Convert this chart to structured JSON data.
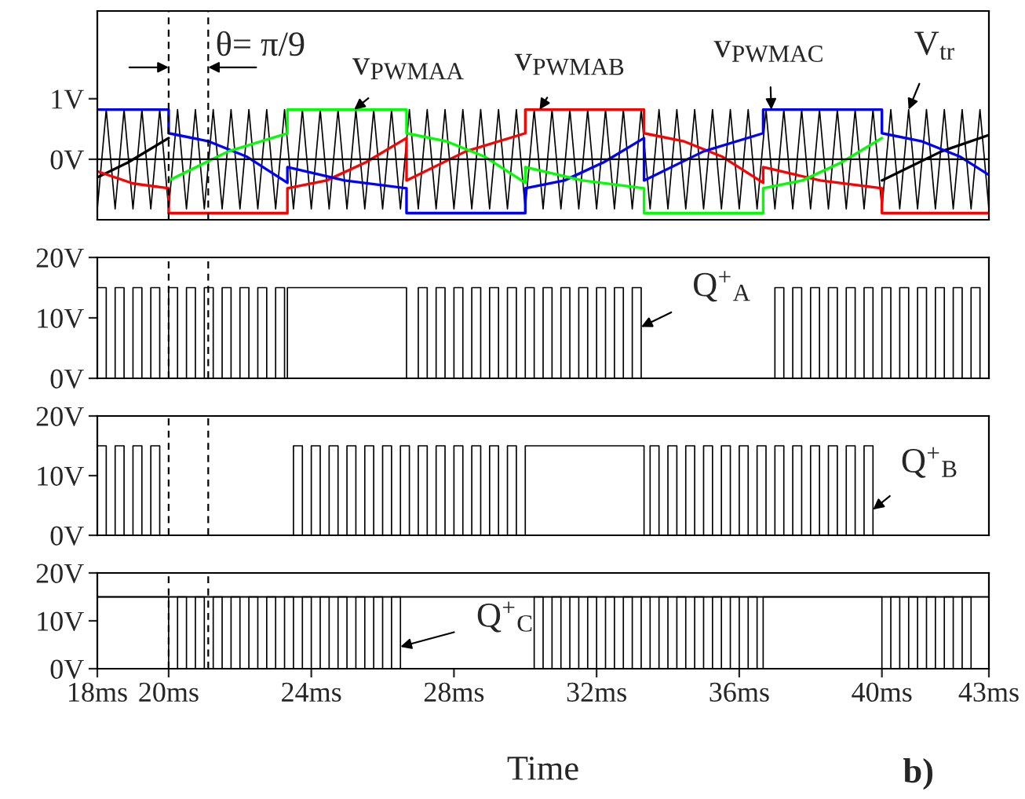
{
  "chart_data": [
    {
      "type": "line",
      "xlim": [
        18,
        43
      ],
      "ylim": [
        -1,
        2.45
      ],
      "yticks": [
        {
          "value": 0,
          "label": "0V"
        },
        {
          "value": 1,
          "label": "1V"
        }
      ],
      "tick_labels": "y",
      "series": [
        {
          "x": [
            18,
            18.25,
            18.5,
            18.75,
            19,
            19.25,
            19.5,
            19.75,
            20,
            20.25,
            20.5,
            20.75,
            21,
            21.25,
            21.5,
            21.75,
            22,
            22.25,
            22.5,
            22.75,
            23,
            23.25,
            23.5,
            23.75,
            24,
            24.25,
            24.5,
            24.75,
            25,
            25.25,
            25.5,
            25.75,
            26,
            26.25,
            26.5,
            26.75,
            27,
            27.25,
            27.5,
            27.75,
            28,
            28.25,
            28.5,
            28.75,
            29,
            29.25,
            29.5,
            29.75,
            30,
            30.25,
            30.5,
            30.75,
            31,
            31.25,
            31.5,
            31.75,
            32,
            32.25,
            32.5,
            32.75,
            33,
            33.25,
            33.5,
            33.75,
            34,
            34.25,
            34.5,
            34.75,
            35,
            35.25,
            35.5,
            35.75,
            36,
            36.25,
            36.5,
            36.75,
            37,
            37.25,
            37.5,
            37.75,
            38,
            38.25,
            38.5,
            38.75,
            39,
            39.25,
            39.5,
            39.75,
            40,
            40.25,
            40.5,
            40.75,
            41,
            41.25,
            41.5,
            41.75,
            42,
            42.25,
            42.5,
            42.75,
            43
          ],
          "color": "#000000",
          "values": [
            -0.82,
            0.82,
            -0.82,
            0.82,
            -0.82,
            0.82,
            -0.82,
            0.82,
            -0.82,
            0.82,
            -0.82,
            0.82,
            -0.82,
            0.82,
            -0.82,
            0.82,
            -0.82,
            0.82,
            -0.82,
            0.82,
            -0.82,
            0.82,
            -0.82,
            0.82,
            -0.82,
            0.82,
            -0.82,
            0.82,
            -0.82,
            0.82,
            -0.82,
            0.82,
            -0.82,
            0.82,
            -0.82,
            0.82,
            -0.82,
            0.82,
            -0.82,
            0.82,
            -0.82,
            0.82,
            -0.82,
            0.82,
            -0.82,
            0.82,
            -0.82,
            0.82,
            -0.82,
            0.82,
            -0.82,
            0.82,
            -0.82,
            0.82,
            -0.82,
            0.82,
            -0.82,
            0.82,
            -0.82,
            0.82,
            -0.82,
            0.82,
            -0.82,
            0.82,
            -0.82,
            0.82,
            -0.82,
            0.82,
            -0.82,
            0.82,
            -0.82,
            0.82,
            -0.82,
            0.82,
            -0.82,
            0.82,
            -0.82,
            0.82,
            -0.82,
            0.82,
            -0.82,
            0.82,
            -0.82,
            0.82,
            -0.82,
            0.82,
            -0.82,
            0.82,
            -0.82,
            0.82,
            -0.82,
            0.82,
            -0.82,
            0.82,
            -0.82,
            0.82,
            -0.82,
            0.82,
            -0.82,
            0.82,
            -0.82
          ]
        },
        {
          "x": [
            18,
            18.87,
            20
          ],
          "color": "#000000",
          "values": [
            -0.3,
            -0.05,
            0.35
          ]
        },
        {
          "x": [
            40,
            41.67,
            43
          ],
          "color": "#000000",
          "values": [
            -0.35,
            0.13,
            0.4
          ]
        },
        {
          "x": [
            18,
            19,
            20,
            20,
            23.33,
            23.33,
            24.43,
            25.53,
            26.67,
            26.67,
            28.33,
            30,
            30,
            33.33,
            33.33,
            34.43,
            35.53,
            36.67,
            36.67,
            38.27,
            40,
            40,
            43
          ],
          "color": "#ff0000",
          "values": [
            -0.2,
            -0.4,
            -0.48,
            -0.89,
            -0.89,
            -0.48,
            -0.35,
            -0.05,
            0.35,
            -0.35,
            0.13,
            0.43,
            0.82,
            0.82,
            0.43,
            0.3,
            0.04,
            -0.39,
            -0.13,
            -0.35,
            -0.48,
            -0.89,
            -0.89
          ]
        },
        {
          "x": [
            18,
            20,
            20,
            21.1,
            22.2,
            23.33,
            23.33,
            24.93,
            26.67,
            26.67,
            30,
            30,
            31.1,
            32.2,
            33.33,
            33.33,
            35,
            36.67,
            36.67,
            40,
            40,
            41.1,
            42.2,
            43
          ],
          "color": "#0000ff",
          "values": [
            0.82,
            0.82,
            0.43,
            0.3,
            0.04,
            -0.39,
            -0.13,
            -0.35,
            -0.48,
            -0.89,
            -0.89,
            -0.48,
            -0.35,
            -0.05,
            0.35,
            -0.35,
            0.13,
            0.43,
            0.82,
            0.82,
            0.43,
            0.3,
            0.04,
            -0.26
          ]
        },
        {
          "x": [
            20,
            21.67,
            23.33,
            23.33,
            26.67,
            26.67,
            27.77,
            28.87,
            30,
            30,
            31.6,
            33.33,
            33.33,
            36.67,
            36.67,
            37.77,
            38.87,
            40
          ],
          "color": "#00ff00",
          "values": [
            -0.35,
            0.13,
            0.43,
            0.82,
            0.82,
            0.43,
            0.3,
            0.04,
            -0.39,
            -0.13,
            -0.35,
            -0.48,
            -0.89,
            -0.89,
            -0.48,
            -0.35,
            -0.05,
            0.35
          ]
        }
      ],
      "ref_lines": [
        {
          "axis": "y",
          "value": 0,
          "color": "#000000",
          "line_style": "solid"
        },
        {
          "axis": "x",
          "value": 20,
          "color": "#000000",
          "line_style": "dashed"
        },
        {
          "axis": "x",
          "value": 21.11,
          "color": "#000000",
          "line_style": "dashed"
        }
      ],
      "annotations": [
        "θ= π/9",
        {
          "text": "v$_{PWMAA}$",
          "x": 25.2,
          "y": 0.82
        },
        {
          "text": "v$_{PWMAB}$",
          "x": 30.4,
          "y": 0.82
        },
        {
          "text": "v$_{PWMAC}$",
          "x": 36.9,
          "y": 0.82
        },
        {
          "text": "V$_{tr}$",
          "x": 40.75,
          "y": 0.82
        }
      ]
    },
    {
      "type": "step",
      "xlim": [
        18,
        43
      ],
      "ylim": [
        0,
        20
      ],
      "yticks": [
        {
          "value": 0,
          "label": "0V"
        },
        {
          "value": 10,
          "label": "10V"
        },
        {
          "value": 20,
          "label": "20V"
        }
      ],
      "tick_labels": "y",
      "series": [
        {
          "color": "#000000",
          "x": [
            18,
            18.25,
            18.5,
            18.75,
            19,
            19.25,
            19.5,
            19.75,
            20,
            20.25,
            20.5,
            20.75,
            21,
            21.25,
            21.5,
            21.75,
            22,
            22.25,
            22.5,
            22.75,
            23,
            23.25,
            23.33,
            26.67,
            27,
            27.25,
            27.5,
            27.75,
            28,
            28.25,
            28.5,
            28.75,
            29,
            29.25,
            29.5,
            29.75,
            30,
            30.25,
            30.5,
            30.75,
            31,
            31.25,
            31.5,
            31.75,
            32,
            32.25,
            32.5,
            32.75,
            33,
            33.25,
            37,
            37.25,
            37.5,
            37.75,
            38,
            38.25,
            38.5,
            38.75,
            39,
            39.25,
            39.5,
            39.75,
            40,
            40.25,
            40.5,
            40.75,
            41,
            41.25,
            41.5,
            41.75,
            42,
            42.25,
            42.5,
            42.75,
            43
          ],
          "values": [
            15,
            0,
            15,
            0,
            15,
            0,
            15,
            0,
            15,
            0,
            15,
            0,
            15,
            0,
            15,
            0,
            15,
            0,
            15,
            0,
            15,
            0,
            15,
            0,
            15,
            0,
            15,
            0,
            15,
            0,
            15,
            0,
            15,
            0,
            15,
            0,
            15,
            0,
            15,
            0,
            15,
            0,
            15,
            0,
            15,
            0,
            15,
            0,
            15,
            0,
            15,
            0,
            15,
            0,
            15,
            0,
            15,
            0,
            15,
            0,
            15,
            0,
            15,
            0,
            15,
            0,
            15,
            0,
            15,
            0,
            15,
            0,
            15,
            0,
            0
          ]
        }
      ],
      "ref_lines": [
        {
          "axis": "x",
          "value": 20,
          "color": "#000000",
          "line_style": "dashed"
        },
        {
          "axis": "x",
          "value": 21.11,
          "color": "#000000",
          "line_style": "dashed"
        }
      ],
      "annotations": [
        {
          "text": "Q$^{+}$$_{A}$",
          "x": 33.25,
          "y": 8.5
        }
      ]
    },
    {
      "type": "step",
      "xlim": [
        18,
        43
      ],
      "ylim": [
        0,
        20
      ],
      "yticks": [
        {
          "value": 0,
          "label": "0V"
        },
        {
          "value": 10,
          "label": "10V"
        },
        {
          "value": 20,
          "label": "20V"
        }
      ],
      "tick_labels": "y",
      "series": [
        {
          "color": "#000000",
          "x": [
            18,
            18.25,
            18.5,
            18.75,
            19,
            19.25,
            19.5,
            19.75,
            23.5,
            23.75,
            24,
            24.25,
            24.5,
            24.75,
            25,
            25.25,
            25.5,
            25.75,
            26,
            26.25,
            26.5,
            26.75,
            27,
            27.25,
            27.5,
            27.75,
            28,
            28.25,
            28.5,
            28.75,
            29,
            29.25,
            29.5,
            29.75,
            30,
            33.33,
            33.5,
            33.75,
            34,
            34.25,
            34.5,
            34.75,
            35,
            35.25,
            35.5,
            35.75,
            36,
            36.25,
            36.5,
            36.75,
            37,
            37.25,
            37.5,
            37.75,
            38,
            38.25,
            38.5,
            38.75,
            39,
            39.25,
            39.5,
            39.75,
            43
          ],
          "values": [
            15,
            0,
            15,
            0,
            15,
            0,
            15,
            0,
            15,
            0,
            15,
            0,
            15,
            0,
            15,
            0,
            15,
            0,
            15,
            0,
            15,
            0,
            15,
            0,
            15,
            0,
            15,
            0,
            15,
            0,
            15,
            0,
            15,
            0,
            15,
            0,
            15,
            0,
            15,
            0,
            15,
            0,
            15,
            0,
            15,
            0,
            15,
            0,
            15,
            0,
            15,
            0,
            15,
            0,
            15,
            0,
            15,
            0,
            15,
            0,
            15,
            0,
            0
          ]
        }
      ],
      "ref_lines": [
        {
          "axis": "x",
          "value": 20,
          "color": "#000000",
          "line_style": "dashed"
        },
        {
          "axis": "x",
          "value": 21.11,
          "color": "#000000",
          "line_style": "dashed"
        }
      ],
      "annotations": [
        {
          "text": "Q$^{+}$$_{B}$",
          "x": 39.75,
          "y": 4.3
        }
      ]
    },
    {
      "type": "step",
      "xlim": [
        18,
        43
      ],
      "xticks": [
        {
          "value": 18,
          "label": "18ms"
        },
        {
          "value": 20,
          "label": "20ms"
        },
        {
          "value": 24,
          "label": "24ms"
        },
        {
          "value": 28,
          "label": "28ms"
        },
        {
          "value": 32,
          "label": "32ms"
        },
        {
          "value": 36,
          "label": "36ms"
        },
        {
          "value": 40,
          "label": "40ms"
        },
        {
          "value": 43,
          "label": "43ms"
        }
      ],
      "ylim": [
        0,
        20
      ],
      "yticks": [
        {
          "value": 0,
          "label": "0V"
        },
        {
          "value": 10,
          "label": "10V"
        },
        {
          "value": 20,
          "label": "20V"
        }
      ],
      "xlabel": "Time",
      "series": [
        {
          "color": "#000000",
          "x": [
            18,
            20,
            20.25,
            20.5,
            20.75,
            21,
            21.25,
            21.5,
            21.75,
            22,
            22.25,
            22.5,
            22.75,
            23,
            23.25,
            23.5,
            23.75,
            24,
            24.25,
            24.5,
            24.75,
            25,
            25.25,
            25.5,
            25.75,
            26,
            26.25,
            26.5,
            30.25,
            30.5,
            30.75,
            31,
            31.25,
            31.5,
            31.75,
            32,
            32.25,
            32.5,
            32.75,
            33,
            33.25,
            33.5,
            33.75,
            34,
            34.25,
            34.5,
            34.75,
            35,
            35.25,
            35.5,
            35.75,
            36,
            36.25,
            36.5,
            36.67,
            40,
            40.25,
            40.5,
            40.75,
            41,
            41.25,
            41.5,
            41.75,
            42,
            42.25,
            42.5,
            43
          ],
          "values": [
            15,
            0,
            15,
            0,
            15,
            0,
            15,
            0,
            15,
            0,
            15,
            0,
            15,
            0,
            15,
            0,
            15,
            0,
            15,
            0,
            15,
            0,
            15,
            0,
            15,
            0,
            15,
            0,
            15,
            0,
            15,
            0,
            15,
            0,
            15,
            0,
            15,
            0,
            15,
            0,
            15,
            0,
            15,
            0,
            15,
            0,
            15,
            0,
            15,
            0,
            15,
            0,
            15,
            0,
            15,
            0,
            15,
            0,
            15,
            0,
            15,
            0,
            15,
            0,
            15,
            0,
            0
          ]
        }
      ],
      "ref_lines": [
        {
          "axis": "y",
          "value": 15,
          "color": "#000000",
          "line_style": "solid"
        },
        {
          "axis": "x",
          "value": 20,
          "color": "#000000",
          "line_style": "dashed"
        },
        {
          "axis": "x",
          "value": 21.11,
          "color": "#000000",
          "line_style": "dashed"
        }
      ],
      "annotations": [
        {
          "text": "Q$^{+}$$_{C}$",
          "x": 26.5,
          "y": 4.6
        },
        "b)"
      ]
    }
  ]
}
